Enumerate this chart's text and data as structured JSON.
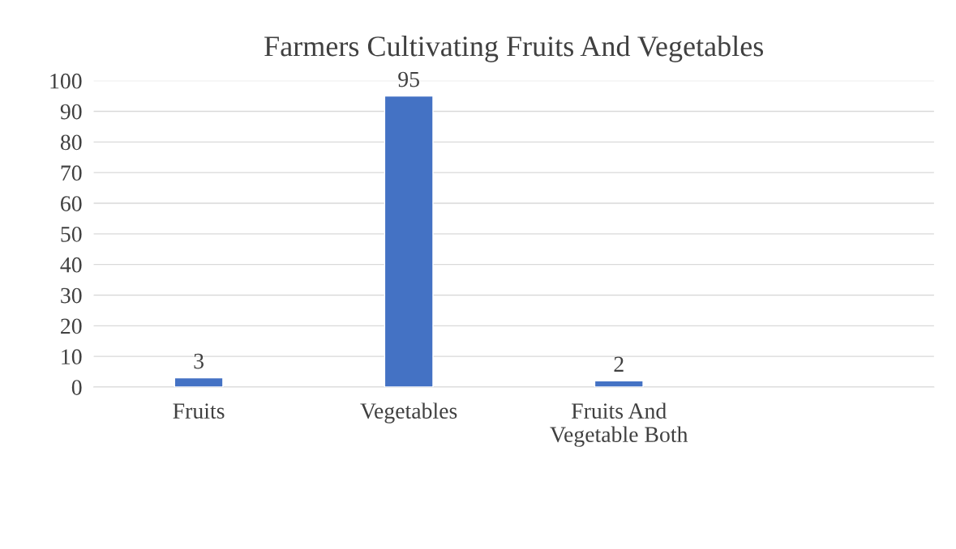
{
  "chart_data": {
    "type": "bar",
    "title": "Farmers Cultivating Fruits And Vegetables",
    "categories": [
      "Fruits",
      "Vegetables",
      "Fruits And Vegetable Both",
      null
    ],
    "values": [
      3,
      95,
      2,
      null
    ],
    "color": "#4472c4",
    "ylim": [
      0,
      100
    ],
    "yticks": [
      0,
      10,
      20,
      30,
      40,
      50,
      60,
      70,
      80,
      90,
      100
    ],
    "grid": "y",
    "data_labels": true
  }
}
